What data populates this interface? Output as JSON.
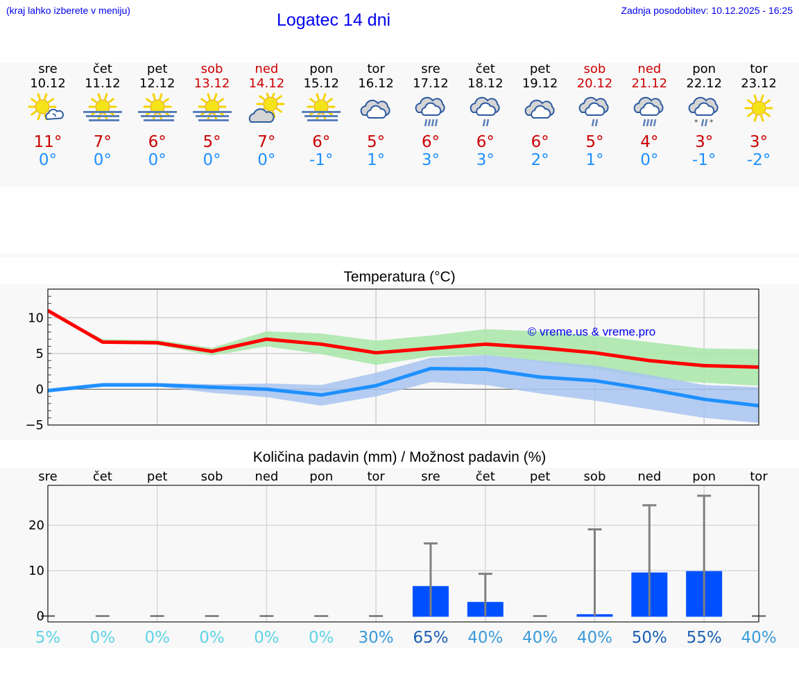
{
  "header": {
    "menu_hint": "(kraj lahko izberete v meniju)",
    "title": "Logatec 14 dni",
    "last_update": "Zadnja posodobitev: 10.12.2025 - 16:25"
  },
  "days": [
    {
      "dow": "sre",
      "date": "10.12",
      "weekend": false,
      "icon": "partly-sunny-icon",
      "tmax": "11°",
      "tmin": "0°"
    },
    {
      "dow": "čet",
      "date": "11.12",
      "weekend": false,
      "icon": "sun-fog-icon",
      "tmax": "7°",
      "tmin": "0°"
    },
    {
      "dow": "pet",
      "date": "12.12",
      "weekend": false,
      "icon": "sun-fog-icon",
      "tmax": "6°",
      "tmin": "0°"
    },
    {
      "dow": "sob",
      "date": "13.12",
      "weekend": true,
      "icon": "sun-fog-icon",
      "tmax": "5°",
      "tmin": "0°"
    },
    {
      "dow": "ned",
      "date": "14.12",
      "weekend": true,
      "icon": "mostly-cloudy-sun-icon",
      "tmax": "7°",
      "tmin": "0°"
    },
    {
      "dow": "pon",
      "date": "15.12",
      "weekend": false,
      "icon": "sun-fog-icon",
      "tmax": "6°",
      "tmin": "-1°"
    },
    {
      "dow": "tor",
      "date": "16.12",
      "weekend": false,
      "icon": "cloudy-icon",
      "tmax": "5°",
      "tmin": "1°"
    },
    {
      "dow": "sre",
      "date": "17.12",
      "weekend": false,
      "icon": "heavy-rain-icon",
      "tmax": "6°",
      "tmin": "3°"
    },
    {
      "dow": "čet",
      "date": "18.12",
      "weekend": false,
      "icon": "light-rain-icon",
      "tmax": "6°",
      "tmin": "3°"
    },
    {
      "dow": "pet",
      "date": "19.12",
      "weekend": false,
      "icon": "cloudy-icon",
      "tmax": "6°",
      "tmin": "2°"
    },
    {
      "dow": "sob",
      "date": "20.12",
      "weekend": true,
      "icon": "light-rain-icon",
      "tmax": "5°",
      "tmin": "1°"
    },
    {
      "dow": "ned",
      "date": "21.12",
      "weekend": true,
      "icon": "heavy-rain-icon",
      "tmax": "4°",
      "tmin": "0°"
    },
    {
      "dow": "pon",
      "date": "22.12",
      "weekend": false,
      "icon": "sleet-icon",
      "tmax": "3°",
      "tmin": "-1°"
    },
    {
      "dow": "tor",
      "date": "23.12",
      "weekend": false,
      "icon": "sunny-icon",
      "tmax": "3°",
      "tmin": "-2°"
    }
  ],
  "colors": {
    "tmax_line": "#ff0000",
    "tmin_line": "#1e90ff",
    "tmax_band": "#a8e6a8",
    "tmin_band": "#a8c4f0",
    "bar": "#0050ff",
    "errbar": "#808080",
    "watermark": "#0000ee"
  },
  "watermark": "© vreme.us & vreme.pro",
  "chart_data": [
    {
      "type": "line",
      "title": "Temperatura (°C)",
      "xlabel": "",
      "ylabel": "",
      "categories": [
        "10.12",
        "11.12",
        "12.12",
        "13.12",
        "14.12",
        "15.12",
        "16.12",
        "17.12",
        "18.12",
        "19.12",
        "20.12",
        "21.12",
        "22.12",
        "23.12"
      ],
      "ylim": [
        -5,
        14
      ],
      "yticks": [
        -5,
        0,
        5,
        10
      ],
      "grid": true,
      "series": [
        {
          "name": "Tmax",
          "values": [
            11.0,
            6.6,
            6.5,
            5.3,
            7.0,
            6.3,
            5.1,
            5.7,
            6.3,
            5.8,
            5.1,
            4.0,
            3.3,
            3.1
          ]
        },
        {
          "name": "Tmax band low",
          "values": [
            10.9,
            6.5,
            6.2,
            4.7,
            6.0,
            4.9,
            3.4,
            4.6,
            4.8,
            3.8,
            2.8,
            1.5,
            0.9,
            0.5
          ]
        },
        {
          "name": "Tmax band high",
          "values": [
            11.1,
            7.0,
            6.9,
            5.8,
            8.1,
            7.8,
            6.8,
            7.5,
            8.4,
            8.1,
            7.5,
            6.6,
            5.7,
            5.6
          ]
        },
        {
          "name": "Tmin",
          "values": [
            -0.2,
            0.6,
            0.6,
            0.3,
            0.0,
            -0.8,
            0.5,
            2.9,
            2.8,
            1.7,
            1.2,
            0.0,
            -1.4,
            -2.3
          ]
        },
        {
          "name": "Tmin band low",
          "values": [
            -0.4,
            0.4,
            0.4,
            -0.5,
            -1.1,
            -2.3,
            -1.0,
            1.0,
            0.6,
            -0.6,
            -1.6,
            -2.8,
            -4.0,
            -4.7
          ]
        },
        {
          "name": "Tmin band high",
          "values": [
            0.1,
            0.9,
            0.9,
            0.7,
            0.8,
            0.6,
            2.3,
            4.4,
            4.8,
            4.0,
            3.3,
            2.0,
            0.6,
            0.3
          ]
        }
      ]
    },
    {
      "type": "bar",
      "title": "Količina padavin (mm) / Možnost padavin (%)",
      "xlabel": "",
      "ylabel": "",
      "categories": [
        "sre",
        "čet",
        "pet",
        "sob",
        "ned",
        "pon",
        "tor",
        "sre",
        "čet",
        "pet",
        "sob",
        "ned",
        "pon",
        "tor"
      ],
      "ylim": [
        -1.3,
        28.8
      ],
      "yticks": [
        0,
        10,
        20
      ],
      "grid": true,
      "series": [
        {
          "name": "Količina padavin (mm)",
          "values": [
            0,
            0,
            0,
            0,
            0,
            0,
            0,
            6.6,
            3.1,
            0,
            0.4,
            9.6,
            9.9,
            0
          ]
        },
        {
          "name": "Zgornja meja (mm)",
          "values": [
            0,
            0,
            0,
            0,
            0,
            0,
            0,
            16.0,
            9.3,
            0,
            19.1,
            24.4,
            26.5,
            0
          ]
        }
      ],
      "probability_labels": [
        "5%",
        "0%",
        "0%",
        "0%",
        "0%",
        "0%",
        "30%",
        "65%",
        "40%",
        "40%",
        "40%",
        "50%",
        "55%",
        "40%"
      ],
      "probability_values": [
        5,
        0,
        0,
        0,
        0,
        0,
        30,
        65,
        40,
        40,
        40,
        50,
        55,
        40
      ]
    }
  ]
}
